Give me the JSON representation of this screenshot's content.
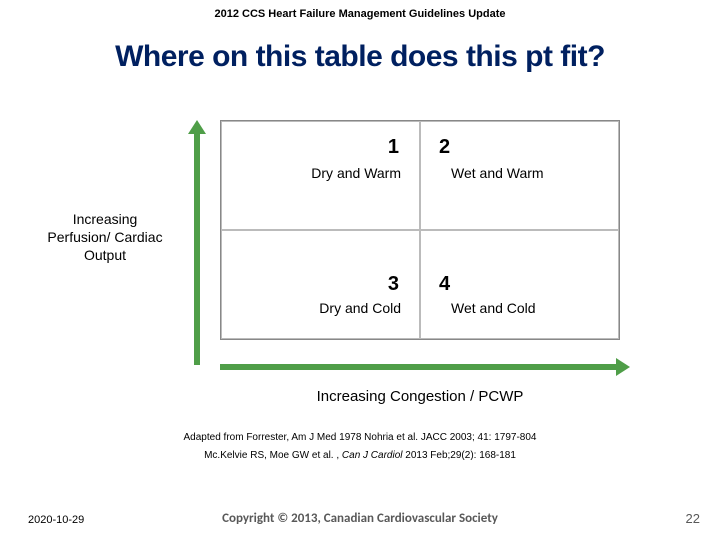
{
  "header": "2012 CCS Heart Failure Management Guidelines Update",
  "title": "Where on this table does this pt fit?",
  "diagram": {
    "y_axis_label": "Increasing Perfusion/ Cardiac Output",
    "x_axis_label": "Increasing Congestion / PCWP",
    "arrow_color": "#4f9e48",
    "grid_border_color": "#888888",
    "cells": {
      "q1": {
        "num": "1",
        "label": "Dry and Warm"
      },
      "q2": {
        "num": "2",
        "label": "Wet and Warm"
      },
      "q3": {
        "num": "3",
        "label": "Dry and Cold"
      },
      "q4": {
        "num": "4",
        "label": "Wet and Cold"
      }
    }
  },
  "citations": {
    "line1": "Adapted from Forrester, Am J Med 1978 Nohria et al. JACC 2003; 41: 1797-804",
    "line2_a": "Mc.Kelvie RS, Moe GW et al. , ",
    "line2_i": "Can J Cardiol ",
    "line2_b": "2013 Feb;29(2): 168-181"
  },
  "footer": {
    "date": "2020-10-29",
    "copyright": "Copyright © 2013, Canadian Cardiovascular Society",
    "page": "22"
  },
  "colors": {
    "title_color": "#002060",
    "footer_grey": "#595959",
    "background": "#ffffff"
  }
}
